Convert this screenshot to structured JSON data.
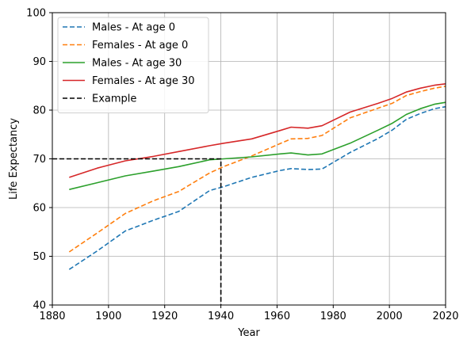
{
  "chart_data": {
    "type": "line",
    "title": "",
    "xlabel": "Year",
    "ylabel": "Life Expectancy",
    "xlim": [
      1880,
      2020
    ],
    "ylim": [
      40,
      100
    ],
    "xticks": [
      1880,
      1900,
      1920,
      1940,
      1960,
      1980,
      2000,
      2020
    ],
    "yticks": [
      40,
      50,
      60,
      70,
      80,
      90,
      100
    ],
    "grid": true,
    "legend_position": "top-left",
    "series": [
      {
        "name": "Males - At age 0",
        "color": "#1f77b4",
        "dash": "dashed",
        "x": [
          1886,
          1896,
          1906,
          1916,
          1925,
          1936,
          1941,
          1951,
          1961,
          1965,
          1971,
          1976,
          1986,
          1996,
          2001,
          2006,
          2011,
          2016,
          2020
        ],
        "y": [
          47.3,
          51.1,
          55.2,
          57.4,
          59.2,
          63.5,
          64.3,
          66.2,
          67.6,
          68.0,
          67.8,
          67.9,
          71.3,
          74.2,
          75.9,
          78.1,
          79.3,
          80.3,
          80.7
        ]
      },
      {
        "name": "Females - At age 0",
        "color": "#ff7f0e",
        "dash": "dashed",
        "x": [
          1886,
          1896,
          1906,
          1916,
          1925,
          1936,
          1941,
          1951,
          1961,
          1965,
          1971,
          1976,
          1986,
          1996,
          2001,
          2006,
          2011,
          2016,
          2020
        ],
        "y": [
          50.9,
          54.8,
          58.8,
          61.4,
          63.3,
          67.1,
          68.4,
          70.6,
          73.1,
          74.1,
          74.2,
          74.8,
          78.4,
          80.4,
          81.4,
          83.0,
          83.8,
          84.5,
          84.9
        ]
      },
      {
        "name": "Males - At age 30",
        "color": "#2ca02c",
        "dash": "solid",
        "x": [
          1886,
          1896,
          1906,
          1916,
          1925,
          1936,
          1941,
          1951,
          1961,
          1965,
          1971,
          1976,
          1986,
          1996,
          2001,
          2006,
          2011,
          2016,
          2020
        ],
        "y": [
          63.7,
          65.1,
          66.5,
          67.5,
          68.4,
          69.8,
          70.0,
          70.4,
          71.0,
          71.2,
          70.8,
          71.0,
          73.2,
          75.9,
          77.3,
          79.1,
          80.3,
          81.2,
          81.6
        ]
      },
      {
        "name": "Females - At age 30",
        "color": "#d62728",
        "dash": "solid",
        "x": [
          1886,
          1896,
          1906,
          1916,
          1925,
          1936,
          1941,
          1951,
          1961,
          1965,
          1971,
          1976,
          1986,
          1996,
          2001,
          2006,
          2011,
          2016,
          2020
        ],
        "y": [
          66.2,
          68.1,
          69.6,
          70.5,
          71.5,
          72.7,
          73.2,
          74.1,
          75.8,
          76.5,
          76.3,
          76.8,
          79.6,
          81.4,
          82.4,
          83.7,
          84.5,
          85.1,
          85.4
        ]
      },
      {
        "name": "Example",
        "color": "#000000",
        "dash": "dashed",
        "x": [
          1880,
          1940,
          1940
        ],
        "y": [
          70,
          70,
          40
        ]
      }
    ]
  }
}
